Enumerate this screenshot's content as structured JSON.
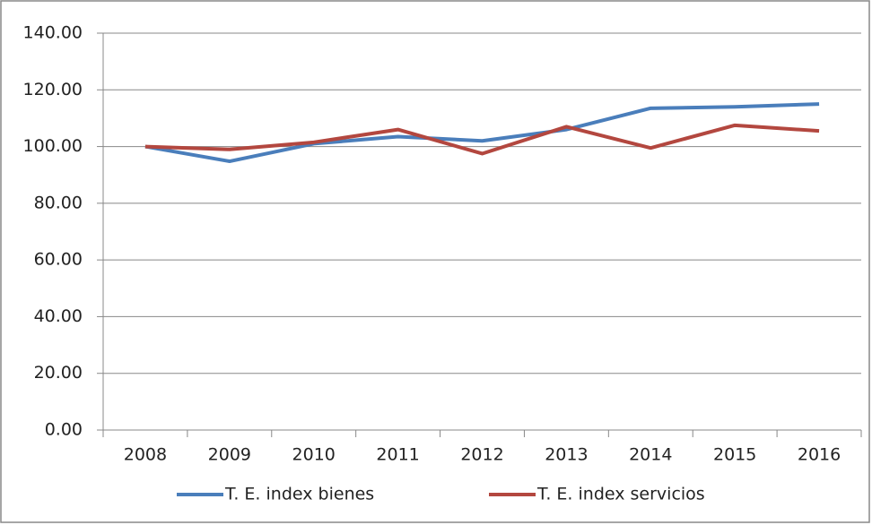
{
  "chart_data": {
    "type": "line",
    "categories": [
      "2008",
      "2009",
      "2010",
      "2011",
      "2012",
      "2013",
      "2014",
      "2015",
      "2016"
    ],
    "series": [
      {
        "name": "T. E. index bienes",
        "color": "#4a7ebb",
        "values": [
          100,
          94.8,
          101,
          103.5,
          102,
          106,
          113.5,
          114,
          115
        ]
      },
      {
        "name": "T. E. index servicios",
        "color": "#b3473f",
        "values": [
          100,
          99,
          101.5,
          106,
          97.5,
          107,
          99.5,
          107.5,
          105.5
        ]
      }
    ],
    "ylim": [
      0,
      140
    ],
    "yticks": [
      {
        "value": 0,
        "label": "0.00"
      },
      {
        "value": 20,
        "label": "20.00"
      },
      {
        "value": 40,
        "label": "40.00"
      },
      {
        "value": 60,
        "label": "60.00"
      },
      {
        "value": 80,
        "label": "80.00"
      },
      {
        "value": 100,
        "label": "100.00"
      },
      {
        "value": 120,
        "label": "120.00"
      },
      {
        "value": 140,
        "label": "140.00"
      }
    ],
    "grid": true,
    "legend": "bottom"
  }
}
